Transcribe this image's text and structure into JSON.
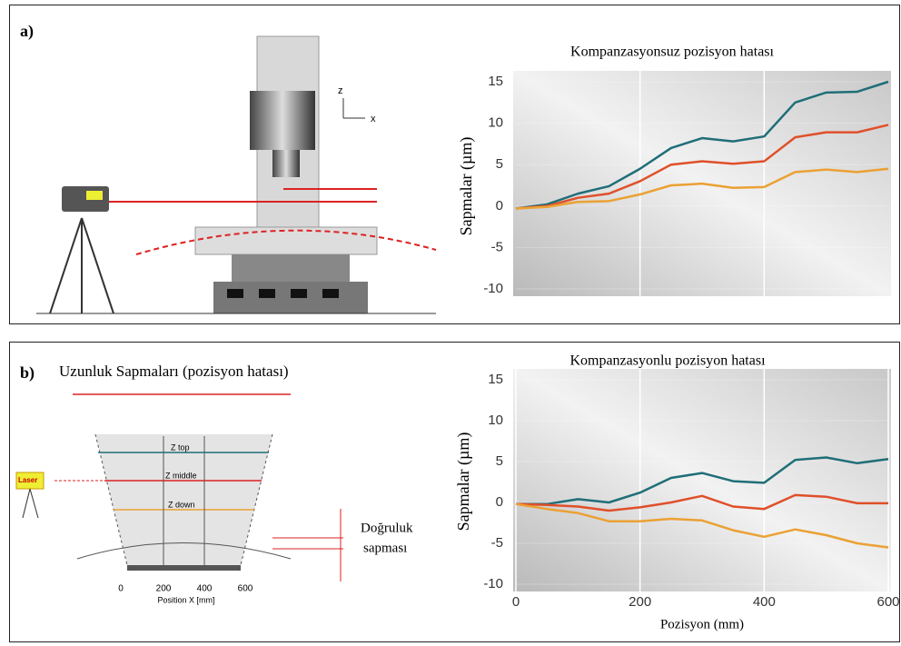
{
  "panels": [
    {
      "label": "a)",
      "axis_z": "z",
      "axis_x": "x"
    },
    {
      "label": "b)",
      "heading": "Uzunluk Sapmaları (pozisyon hatası)",
      "z_top": "Z top",
      "z_middle": "Z middle",
      "z_down": "Z down",
      "laser": "Laser",
      "accuracy_line1": "Doğruluk",
      "accuracy_line2": "sapması",
      "scale_ticks": [
        "0",
        "200",
        "400",
        "600"
      ],
      "scale_title": "Position X [mm]"
    }
  ],
  "chart_data": [
    {
      "type": "line",
      "title": "Kompanzasyonsuz pozisyon hatası",
      "y_label": "Sapmalar (µm)",
      "x": [
        0,
        50,
        100,
        150,
        200,
        250,
        300,
        350,
        400,
        450,
        500,
        550,
        600
      ],
      "xlim": [
        0,
        600
      ],
      "xgrid": [
        200,
        400
      ],
      "ylim": [
        -10,
        15
      ],
      "yticks": [
        -10,
        -5,
        0,
        5,
        10,
        15
      ],
      "series": [
        {
          "color": "#1f6e78",
          "values": [
            -0.3,
            0.2,
            1.5,
            2.4,
            4.5,
            7.0,
            8.2,
            7.8,
            8.4,
            12.5,
            13.7,
            13.8,
            15.0
          ]
        },
        {
          "color": "#e0502a",
          "values": [
            -0.3,
            0.0,
            1.0,
            1.5,
            3.0,
            5.0,
            5.4,
            5.1,
            5.4,
            8.3,
            8.9,
            8.9,
            9.8
          ]
        },
        {
          "color": "#eba133",
          "values": [
            -0.3,
            -0.1,
            0.5,
            0.6,
            1.4,
            2.5,
            2.7,
            2.2,
            2.3,
            4.1,
            4.4,
            4.1,
            4.5
          ]
        }
      ]
    },
    {
      "type": "line",
      "title": "Kompanzasyonlu pozisyon hatası",
      "y_label": "Sapmalar (µm)",
      "x_label": "Pozisyon (mm)",
      "x": [
        0,
        50,
        100,
        150,
        200,
        250,
        300,
        350,
        400,
        450,
        500,
        550,
        600
      ],
      "xlim": [
        0,
        600
      ],
      "xticks": [
        0,
        200,
        400,
        600
      ],
      "ylim": [
        -10,
        15
      ],
      "yticks": [
        -10,
        -5,
        0,
        5,
        10,
        15
      ],
      "series": [
        {
          "color": "#1f6e78",
          "values": [
            -0.2,
            -0.2,
            0.4,
            0.0,
            1.2,
            3.0,
            3.6,
            2.6,
            2.4,
            5.2,
            5.5,
            4.8,
            5.3
          ]
        },
        {
          "color": "#e0502a",
          "values": [
            -0.2,
            -0.3,
            -0.5,
            -1.0,
            -0.6,
            0.0,
            0.8,
            -0.5,
            -0.8,
            0.9,
            0.7,
            -0.1,
            -0.1
          ]
        },
        {
          "color": "#eba133",
          "values": [
            -0.2,
            -0.8,
            -1.3,
            -2.3,
            -2.3,
            -2.0,
            -2.2,
            -3.4,
            -4.2,
            -3.3,
            -4.0,
            -5.0,
            -5.5
          ]
        }
      ]
    }
  ]
}
